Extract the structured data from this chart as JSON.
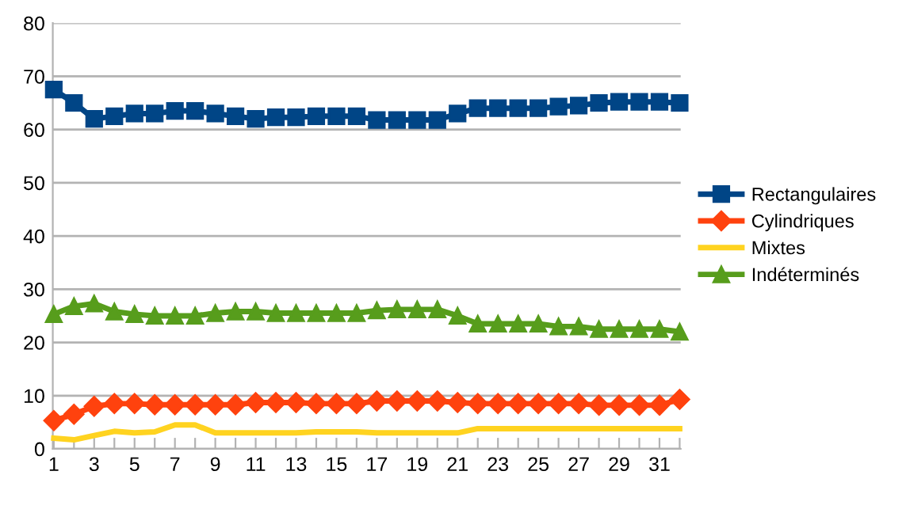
{
  "chart_data": {
    "type": "line",
    "categories": [
      "1",
      null,
      "3",
      null,
      "5",
      null,
      "7",
      null,
      "9",
      null,
      "11",
      null,
      "13",
      null,
      "15",
      null,
      "17",
      null,
      "19",
      null,
      "21",
      null,
      "23",
      null,
      "25",
      null,
      "27",
      null,
      "29",
      null,
      "31",
      null
    ],
    "series": [
      {
        "name": "Rectangulaires",
        "color": "#004586",
        "marker": "square",
        "values": [
          67.5,
          65,
          62,
          62.5,
          63,
          63,
          63.5,
          63.5,
          63,
          62.5,
          62,
          62.3,
          62.3,
          62.5,
          62.5,
          62.5,
          61.8,
          61.8,
          61.8,
          61.8,
          63,
          64,
          64,
          64,
          64,
          64.3,
          64.5,
          65,
          65.2,
          65.2,
          65.2,
          65
        ]
      },
      {
        "name": "Cylindriques",
        "color": "#ff420e",
        "marker": "diamond",
        "values": [
          5.3,
          6.5,
          8,
          8.5,
          8.5,
          8.3,
          8.3,
          8.3,
          8.3,
          8.3,
          8.7,
          8.7,
          8.7,
          8.5,
          8.5,
          8.5,
          9,
          9,
          9,
          9,
          8.7,
          8.5,
          8.5,
          8.5,
          8.5,
          8.5,
          8.5,
          8.2,
          8.2,
          8.2,
          8.2,
          9.3
        ]
      },
      {
        "name": "Mixtes",
        "color": "#ffd320",
        "marker": "none",
        "values": [
          2,
          1.7,
          2.5,
          3.3,
          3,
          3.2,
          4.5,
          4.5,
          3,
          3,
          3,
          3,
          3,
          3.2,
          3.2,
          3.2,
          3,
          3,
          3,
          3,
          3,
          3.8,
          3.8,
          3.8,
          3.8,
          3.8,
          3.8,
          3.8,
          3.8,
          3.8,
          3.8,
          3.8
        ]
      },
      {
        "name": "Indéterminés",
        "color": "#579d1c",
        "marker": "triangle",
        "values": [
          25.3,
          26.8,
          27.3,
          25.8,
          25.3,
          25,
          25,
          25,
          25.5,
          25.8,
          25.8,
          25.5,
          25.5,
          25.5,
          25.5,
          25.5,
          26,
          26.2,
          26.2,
          26.2,
          25,
          23.5,
          23.5,
          23.5,
          23.5,
          23,
          23,
          22.5,
          22.5,
          22.5,
          22.5,
          22
        ]
      }
    ],
    "ylim": [
      0,
      80
    ],
    "yticks": [
      0,
      10,
      20,
      30,
      40,
      50,
      60,
      70,
      80
    ],
    "grid": "y",
    "legend": "right",
    "line_style": "solid"
  }
}
